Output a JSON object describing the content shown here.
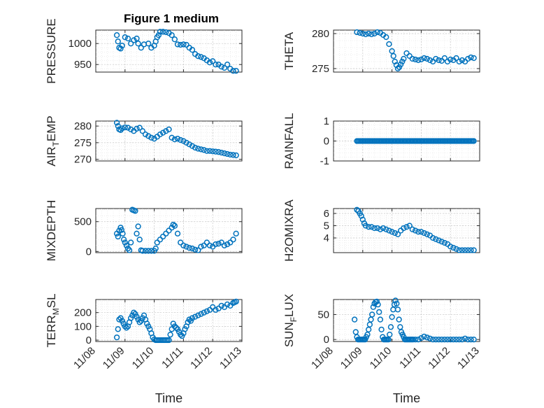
{
  "figure": {
    "title": "Figure 1 medium",
    "marker_color": "#0072BD"
  },
  "chart_data": [
    {
      "type": "scatter",
      "id": "pressure",
      "ylabel": "PRESSURE",
      "ylabel_sub": null,
      "ylim": [
        932,
        1032
      ],
      "yticks": [
        950,
        1000
      ],
      "ytick_labels": [
        "950",
        "1000"
      ],
      "xlim": [
        0,
        5
      ],
      "xticks": [
        0,
        1,
        2,
        3,
        4,
        5
      ],
      "xtick_labels": [
        "11/08",
        "11/09",
        "11/10",
        "11/11",
        "11/12",
        "11/13"
      ],
      "xtick_labels_visible": false,
      "xlabel": "",
      "grid": true,
      "x": [
        0.72,
        0.76,
        0.8,
        0.85,
        0.9,
        1.0,
        1.1,
        1.2,
        1.3,
        1.4,
        1.45,
        1.55,
        1.65,
        1.8,
        1.9,
        2.0,
        2.05,
        2.1,
        2.15,
        2.2,
        2.3,
        2.4,
        2.5,
        2.6,
        2.7,
        2.8,
        2.9,
        3.0,
        3.1,
        3.2,
        3.3,
        3.4,
        3.5,
        3.6,
        3.7,
        3.8,
        3.9,
        4.0,
        4.1,
        4.2,
        4.3,
        4.4,
        4.5,
        4.6,
        4.7,
        4.8
      ],
      "y": [
        1020,
        1005,
        990,
        988,
        995,
        1015,
        1012,
        1000,
        1008,
        1012,
        1000,
        990,
        998,
        1000,
        990,
        995,
        1005,
        1015,
        1020,
        1028,
        1028,
        1027,
        1025,
        1020,
        1010,
        998,
        997,
        998,
        997,
        990,
        985,
        975,
        970,
        968,
        965,
        960,
        955,
        958,
        950,
        950,
        945,
        942,
        950,
        940,
        935,
        935
      ]
    },
    {
      "type": "scatter",
      "id": "theta",
      "ylabel": "THETA",
      "ylabel_sub": null,
      "ylim": [
        274.5,
        280.5
      ],
      "yticks": [
        275,
        280
      ],
      "ytick_labels": [
        "275",
        "280"
      ],
      "xlim": [
        0,
        5
      ],
      "xticks": [
        0,
        1,
        2,
        3,
        4,
        5
      ],
      "xtick_labels": [
        "11/08",
        "11/09",
        "11/10",
        "11/11",
        "11/12",
        "11/13"
      ],
      "xtick_labels_visible": false,
      "xlabel": "",
      "grid": true,
      "x": [
        0.8,
        0.9,
        1.0,
        1.1,
        1.2,
        1.3,
        1.4,
        1.5,
        1.6,
        1.7,
        1.8,
        1.9,
        2.0,
        2.05,
        2.1,
        2.15,
        2.2,
        2.25,
        2.3,
        2.35,
        2.4,
        2.5,
        2.6,
        2.7,
        2.8,
        2.9,
        3.0,
        3.1,
        3.2,
        3.3,
        3.4,
        3.5,
        3.6,
        3.7,
        3.8,
        3.9,
        4.0,
        4.1,
        4.2,
        4.3,
        4.4,
        4.5,
        4.6,
        4.7,
        4.8
      ],
      "y": [
        280.2,
        280.1,
        280.0,
        279.9,
        280.0,
        279.9,
        280.0,
        280.2,
        280.1,
        279.8,
        279.5,
        278.5,
        277.5,
        276.8,
        276.0,
        275.5,
        275.0,
        275.2,
        275.6,
        276.0,
        276.4,
        277.2,
        276.8,
        276.4,
        276.3,
        276.2,
        276.3,
        276.5,
        276.4,
        276.2,
        276.0,
        276.4,
        276.2,
        276.1,
        276.5,
        276.0,
        276.3,
        276.2,
        276.5,
        276.0,
        276.2,
        276.0,
        276.4,
        276.6,
        276.5
      ]
    },
    {
      "type": "scatter",
      "id": "air_temp",
      "ylabel": "AIR",
      "ylabel_sub": "T",
      "ylabel_post": "EMP",
      "ylim": [
        269.5,
        281.5
      ],
      "yticks": [
        270,
        275,
        280
      ],
      "ytick_labels": [
        "270",
        "275",
        "280"
      ],
      "xlim": [
        0,
        5
      ],
      "xticks": [
        0,
        1,
        2,
        3,
        4,
        5
      ],
      "xtick_labels": [
        "11/08",
        "11/09",
        "11/10",
        "11/11",
        "11/12",
        "11/13"
      ],
      "xtick_labels_visible": false,
      "xlabel": "",
      "grid": true,
      "x": [
        0.72,
        0.76,
        0.8,
        0.85,
        0.9,
        1.0,
        1.1,
        1.2,
        1.3,
        1.4,
        1.5,
        1.6,
        1.7,
        1.8,
        1.9,
        2.0,
        2.1,
        2.2,
        2.3,
        2.4,
        2.5,
        2.6,
        2.7,
        2.8,
        2.9,
        3.0,
        3.1,
        3.2,
        3.3,
        3.4,
        3.5,
        3.6,
        3.7,
        3.8,
        3.9,
        4.0,
        4.1,
        4.2,
        4.3,
        4.4,
        4.5,
        4.6,
        4.7,
        4.8
      ],
      "y": [
        281,
        280,
        279,
        278.8,
        279.3,
        279.6,
        279.5,
        279,
        278.5,
        279.2,
        279.5,
        278.5,
        277.5,
        277,
        276.5,
        276.2,
        276.8,
        277.5,
        278,
        278.5,
        279,
        276.5,
        276,
        276.2,
        275.8,
        275.5,
        275,
        274.5,
        274,
        273.5,
        273.2,
        273,
        272.8,
        272.5,
        272.5,
        272.4,
        272.3,
        272.2,
        272,
        271.8,
        271.6,
        271.4,
        271.3,
        271.2
      ]
    },
    {
      "type": "scatter",
      "id": "rainfall",
      "ylabel": "RAINFALL",
      "ylabel_sub": null,
      "ylim": [
        -1,
        1
      ],
      "yticks": [
        -1,
        0,
        1
      ],
      "ytick_labels": [
        "-1",
        "0",
        "1"
      ],
      "xlim": [
        0,
        5
      ],
      "xticks": [
        0,
        1,
        2,
        3,
        4,
        5
      ],
      "xtick_labels": [
        "11/08",
        "11/09",
        "11/10",
        "11/11",
        "11/12",
        "11/13"
      ],
      "xtick_labels_visible": false,
      "xlabel": "",
      "grid": true,
      "x_range": [
        0.8,
        4.8
      ],
      "constant_y": 0
    },
    {
      "type": "scatter",
      "id": "mixdepth",
      "ylabel": "MIXDEPTH",
      "ylabel_sub": null,
      "ylim": [
        -20,
        720
      ],
      "yticks": [
        0,
        500
      ],
      "ytick_labels": [
        "0",
        "500"
      ],
      "xlim": [
        0,
        5
      ],
      "xticks": [
        0,
        1,
        2,
        3,
        4,
        5
      ],
      "xtick_labels": [
        "11/08",
        "11/09",
        "11/10",
        "11/11",
        "11/12",
        "11/13"
      ],
      "xtick_labels_visible": false,
      "xlabel": "",
      "grid": true,
      "x": [
        0.72,
        0.76,
        0.8,
        0.85,
        0.88,
        0.92,
        0.96,
        1.0,
        1.05,
        1.1,
        1.15,
        1.2,
        1.25,
        1.3,
        1.35,
        1.4,
        1.45,
        1.5,
        1.55,
        1.6,
        1.7,
        1.8,
        1.9,
        2.0,
        2.05,
        2.1,
        2.2,
        2.3,
        2.4,
        2.5,
        2.6,
        2.65,
        2.7,
        2.8,
        2.9,
        3.0,
        3.1,
        3.2,
        3.3,
        3.4,
        3.5,
        3.6,
        3.7,
        3.8,
        3.9,
        4.0,
        4.1,
        4.2,
        4.3,
        4.4,
        4.5,
        4.6,
        4.7,
        4.8
      ],
      "y": [
        300,
        250,
        350,
        400,
        360,
        300,
        200,
        150,
        100,
        50,
        20,
        150,
        700,
        690,
        680,
        300,
        420,
        200,
        20,
        10,
        10,
        10,
        10,
        10,
        50,
        150,
        200,
        250,
        300,
        350,
        400,
        450,
        430,
        300,
        150,
        100,
        80,
        60,
        50,
        30,
        20,
        80,
        100,
        150,
        100,
        80,
        120,
        130,
        150,
        100,
        120,
        150,
        200,
        300
      ]
    },
    {
      "type": "scatter",
      "id": "h2omixra",
      "ylabel": "H2OMIXRA",
      "ylabel_sub": null,
      "ylim": [
        2.8,
        6.4
      ],
      "yticks": [
        4,
        5,
        6
      ],
      "ytick_labels": [
        "4",
        "5",
        "6"
      ],
      "xlim": [
        0,
        5
      ],
      "xticks": [
        0,
        1,
        2,
        3,
        4,
        5
      ],
      "xtick_labels": [
        "11/08",
        "11/09",
        "11/10",
        "11/11",
        "11/12",
        "11/13"
      ],
      "xtick_labels_visible": false,
      "xlabel": "",
      "grid": true,
      "x": [
        0.8,
        0.85,
        0.9,
        0.95,
        1.0,
        1.05,
        1.1,
        1.2,
        1.3,
        1.4,
        1.5,
        1.6,
        1.7,
        1.8,
        1.9,
        2.0,
        2.1,
        2.2,
        2.3,
        2.4,
        2.5,
        2.6,
        2.7,
        2.8,
        2.9,
        3.0,
        3.1,
        3.2,
        3.3,
        3.4,
        3.5,
        3.6,
        3.7,
        3.8,
        3.9,
        4.0,
        4.1,
        4.2,
        4.3,
        4.4,
        4.5,
        4.6,
        4.7,
        4.8
      ],
      "y": [
        6.3,
        6.2,
        6.0,
        5.8,
        5.5,
        5.2,
        5.0,
        4.9,
        4.9,
        4.8,
        4.8,
        4.7,
        4.8,
        4.7,
        4.6,
        4.5,
        4.4,
        4.3,
        4.6,
        4.8,
        4.9,
        5.0,
        4.7,
        4.6,
        4.5,
        4.5,
        4.4,
        4.3,
        4.2,
        4.0,
        3.9,
        3.8,
        3.7,
        3.6,
        3.5,
        3.3,
        3.2,
        3.1,
        3.0,
        3.0,
        3.0,
        3.0,
        3.0,
        3.0
      ]
    },
    {
      "type": "scatter",
      "id": "terr_msl",
      "ylabel": "TERR",
      "ylabel_sub": "M",
      "ylabel_post": "SL",
      "ylim": [
        -10,
        295
      ],
      "yticks": [
        0,
        100,
        200
      ],
      "ytick_labels": [
        "0",
        "100",
        "200"
      ],
      "xlim": [
        0,
        5
      ],
      "xticks": [
        0,
        1,
        2,
        3,
        4,
        5
      ],
      "xtick_labels": [
        "11/08",
        "11/09",
        "11/10",
        "11/11",
        "11/12",
        "11/13"
      ],
      "xtick_labels_visible": true,
      "xlabel": "Time",
      "grid": true,
      "x": [
        0.72,
        0.76,
        0.8,
        0.85,
        0.9,
        0.95,
        1.0,
        1.05,
        1.1,
        1.15,
        1.2,
        1.25,
        1.3,
        1.35,
        1.4,
        1.45,
        1.5,
        1.55,
        1.6,
        1.65,
        1.7,
        1.75,
        1.8,
        1.85,
        1.9,
        1.95,
        2.0,
        2.05,
        2.1,
        2.15,
        2.2,
        2.25,
        2.3,
        2.35,
        2.4,
        2.45,
        2.5,
        2.55,
        2.6,
        2.65,
        2.7,
        2.75,
        2.8,
        2.85,
        2.9,
        2.95,
        3.0,
        3.05,
        3.1,
        3.15,
        3.2,
        3.25,
        3.3,
        3.4,
        3.5,
        3.6,
        3.7,
        3.8,
        3.9,
        4.0,
        4.1,
        4.2,
        4.3,
        4.4,
        4.5,
        4.6,
        4.7,
        4.75,
        4.8
      ],
      "y": [
        20,
        80,
        150,
        160,
        140,
        120,
        100,
        90,
        100,
        130,
        160,
        180,
        200,
        190,
        170,
        150,
        130,
        140,
        160,
        180,
        150,
        120,
        100,
        80,
        50,
        20,
        5,
        0,
        0,
        0,
        0,
        0,
        0,
        0,
        0,
        0,
        0,
        40,
        80,
        120,
        100,
        90,
        80,
        60,
        40,
        30,
        50,
        80,
        100,
        130,
        150,
        140,
        160,
        170,
        180,
        190,
        200,
        210,
        220,
        240,
        220,
        230,
        250,
        240,
        260,
        250,
        270,
        275,
        280
      ]
    },
    {
      "type": "scatter",
      "id": "sun_flux",
      "ylabel": "SUN",
      "ylabel_sub": "F",
      "ylabel_post": "LUX",
      "ylim": [
        -4,
        80
      ],
      "yticks": [
        0,
        50
      ],
      "ytick_labels": [
        "0",
        "50"
      ],
      "xlim": [
        0,
        5
      ],
      "xticks": [
        0,
        1,
        2,
        3,
        4,
        5
      ],
      "xtick_labels": [
        "11/08",
        "11/09",
        "11/10",
        "11/11",
        "11/12",
        "11/13"
      ],
      "xtick_labels_visible": true,
      "xlabel": "Time",
      "grid": true,
      "x": [
        0.72,
        0.76,
        0.8,
        0.84,
        0.88,
        0.92,
        0.96,
        1.0,
        1.04,
        1.08,
        1.12,
        1.16,
        1.2,
        1.24,
        1.28,
        1.32,
        1.36,
        1.4,
        1.44,
        1.48,
        1.52,
        1.56,
        1.6,
        1.64,
        1.68,
        1.72,
        1.76,
        1.8,
        1.84,
        1.88,
        1.92,
        1.96,
        2.0,
        2.04,
        2.08,
        2.12,
        2.16,
        2.2,
        2.24,
        2.28,
        2.32,
        2.36,
        2.4,
        2.44,
        2.48,
        2.52,
        2.56,
        2.6,
        2.64,
        2.68,
        2.72,
        2.8,
        2.9,
        3.0,
        3.1,
        3.2,
        3.3,
        3.4,
        3.5,
        3.6,
        3.7,
        3.8,
        3.9,
        4.0,
        4.1,
        4.2,
        4.3,
        4.4,
        4.5,
        4.6,
        4.7,
        4.8
      ],
      "y": [
        40,
        15,
        5,
        0,
        0,
        0,
        0,
        0,
        0,
        0,
        5,
        10,
        20,
        30,
        40,
        50,
        65,
        72,
        75,
        76,
        70,
        55,
        40,
        20,
        5,
        0,
        0,
        0,
        0,
        0,
        10,
        25,
        45,
        60,
        70,
        78,
        72,
        60,
        40,
        25,
        15,
        10,
        5,
        0,
        0,
        0,
        0,
        0,
        0,
        0,
        0,
        0,
        0,
        3,
        6,
        4,
        2,
        0,
        0,
        0,
        0,
        0,
        0,
        0,
        0,
        0,
        0,
        0,
        2,
        0,
        0,
        0
      ]
    }
  ]
}
